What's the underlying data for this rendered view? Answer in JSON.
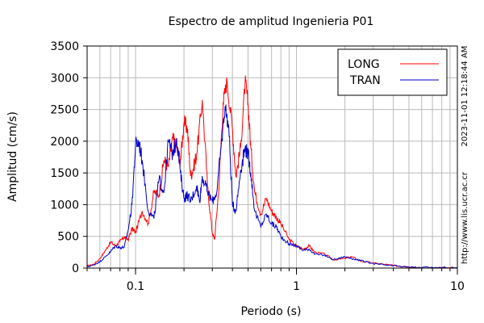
{
  "chart_data": {
    "type": "line",
    "title": "Espectro de amplitud Ingenieria P01",
    "xlabel": "Periodo (s)",
    "ylabel": "Amplitud (cm/s)",
    "x_scale": "log",
    "xlim": [
      0.05,
      10
    ],
    "ylim": [
      0,
      3500
    ],
    "x_ticks": [
      {
        "value": 0.1,
        "label": "0.1"
      },
      {
        "value": 1,
        "label": "1"
      },
      {
        "value": 10,
        "label": "10"
      }
    ],
    "y_ticks": [
      0,
      500,
      1000,
      1500,
      2000,
      2500,
      3000,
      3500
    ],
    "grid": true,
    "legend_position": "top-right",
    "side_texts": [
      "2023-11-01 12:18:44 AM",
      "http://www.lis.ucr.ac.cr"
    ],
    "series": [
      {
        "name": "LONG",
        "color": "#ff0000",
        "points": [
          [
            0.05,
            30
          ],
          [
            0.055,
            60
          ],
          [
            0.06,
            150
          ],
          [
            0.065,
            280
          ],
          [
            0.07,
            410
          ],
          [
            0.075,
            350
          ],
          [
            0.08,
            420
          ],
          [
            0.085,
            490
          ],
          [
            0.09,
            450
          ],
          [
            0.095,
            620
          ],
          [
            0.1,
            560
          ],
          [
            0.11,
            900
          ],
          [
            0.12,
            700
          ],
          [
            0.13,
            1200
          ],
          [
            0.14,
            1150
          ],
          [
            0.15,
            1700
          ],
          [
            0.16,
            1600
          ],
          [
            0.17,
            2050
          ],
          [
            0.18,
            1900
          ],
          [
            0.19,
            1700
          ],
          [
            0.2,
            2300
          ],
          [
            0.21,
            2200
          ],
          [
            0.22,
            1450
          ],
          [
            0.23,
            1600
          ],
          [
            0.24,
            1800
          ],
          [
            0.26,
            2650
          ],
          [
            0.28,
            1300
          ],
          [
            0.3,
            550
          ],
          [
            0.31,
            450
          ],
          [
            0.33,
            1300
          ],
          [
            0.35,
            2600
          ],
          [
            0.37,
            2950
          ],
          [
            0.4,
            2200
          ],
          [
            0.42,
            1450
          ],
          [
            0.45,
            1900
          ],
          [
            0.48,
            2950
          ],
          [
            0.5,
            2600
          ],
          [
            0.52,
            1900
          ],
          [
            0.55,
            1200
          ],
          [
            0.6,
            850
          ],
          [
            0.65,
            1100
          ],
          [
            0.7,
            900
          ],
          [
            0.75,
            800
          ],
          [
            0.8,
            700
          ],
          [
            0.9,
            450
          ],
          [
            1.0,
            350
          ],
          [
            1.1,
            300
          ],
          [
            1.2,
            350
          ],
          [
            1.3,
            250
          ],
          [
            1.5,
            220
          ],
          [
            1.7,
            130
          ],
          [
            2.0,
            150
          ],
          [
            2.2,
            180
          ],
          [
            2.5,
            110
          ],
          [
            3.0,
            80
          ],
          [
            3.5,
            60
          ],
          [
            4.0,
            40
          ],
          [
            5.0,
            20
          ],
          [
            6.0,
            10
          ],
          [
            8.0,
            5
          ],
          [
            10.0,
            5
          ]
        ]
      },
      {
        "name": "TRAN",
        "color": "#0000cc",
        "points": [
          [
            0.05,
            20
          ],
          [
            0.055,
            50
          ],
          [
            0.06,
            100
          ],
          [
            0.065,
            180
          ],
          [
            0.07,
            260
          ],
          [
            0.075,
            350
          ],
          [
            0.08,
            320
          ],
          [
            0.085,
            330
          ],
          [
            0.09,
            600
          ],
          [
            0.095,
            1000
          ],
          [
            0.1,
            1950
          ],
          [
            0.105,
            1980
          ],
          [
            0.11,
            1700
          ],
          [
            0.12,
            900
          ],
          [
            0.13,
            780
          ],
          [
            0.14,
            1400
          ],
          [
            0.15,
            1200
          ],
          [
            0.16,
            2000
          ],
          [
            0.17,
            1800
          ],
          [
            0.18,
            2050
          ],
          [
            0.19,
            1500
          ],
          [
            0.2,
            1100
          ],
          [
            0.21,
            1150
          ],
          [
            0.22,
            1050
          ],
          [
            0.24,
            1300
          ],
          [
            0.25,
            1050
          ],
          [
            0.26,
            1450
          ],
          [
            0.28,
            1200
          ],
          [
            0.3,
            1050
          ],
          [
            0.32,
            1200
          ],
          [
            0.34,
            1900
          ],
          [
            0.36,
            2550
          ],
          [
            0.38,
            2200
          ],
          [
            0.4,
            1000
          ],
          [
            0.42,
            900
          ],
          [
            0.45,
            1550
          ],
          [
            0.48,
            1900
          ],
          [
            0.5,
            1800
          ],
          [
            0.52,
            1500
          ],
          [
            0.55,
            900
          ],
          [
            0.6,
            650
          ],
          [
            0.65,
            850
          ],
          [
            0.7,
            700
          ],
          [
            0.75,
            650
          ],
          [
            0.8,
            500
          ],
          [
            0.9,
            380
          ],
          [
            1.0,
            350
          ],
          [
            1.1,
            280
          ],
          [
            1.2,
            300
          ],
          [
            1.3,
            220
          ],
          [
            1.5,
            200
          ],
          [
            1.7,
            130
          ],
          [
            2.0,
            180
          ],
          [
            2.2,
            150
          ],
          [
            2.5,
            120
          ],
          [
            3.0,
            70
          ],
          [
            3.5,
            50
          ],
          [
            4.0,
            35
          ],
          [
            5.0,
            15
          ],
          [
            6.0,
            8
          ],
          [
            8.0,
            5
          ],
          [
            10.0,
            5
          ]
        ]
      }
    ]
  }
}
